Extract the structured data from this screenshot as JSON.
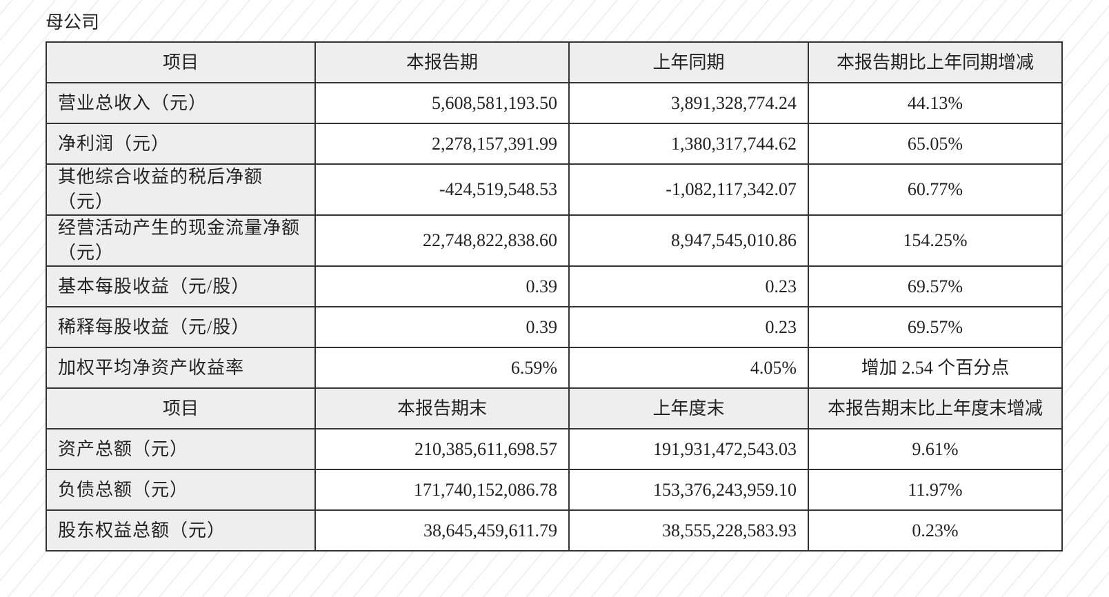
{
  "caption": "母公司",
  "table": {
    "sections": [
      {
        "header": [
          "项目",
          "本报告期",
          "上年同期",
          "本报告期比上年同期增减"
        ],
        "rows": [
          [
            "营业总收入（元）",
            "5,608,581,193.50",
            "3,891,328,774.24",
            "44.13%"
          ],
          [
            "净利润（元）",
            "2,278,157,391.99",
            "1,380,317,744.62",
            "65.05%"
          ],
          [
            "其他综合收益的税后净额（元）",
            "-424,519,548.53",
            "-1,082,117,342.07",
            "60.77%"
          ],
          [
            "经营活动产生的现金流量净额（元）",
            "22,748,822,838.60",
            "8,947,545,010.86",
            "154.25%"
          ],
          [
            "基本每股收益（元/股）",
            "0.39",
            "0.23",
            "69.57%"
          ],
          [
            "稀释每股收益（元/股）",
            "0.39",
            "0.23",
            "69.57%"
          ],
          [
            "加权平均净资产收益率",
            "6.59%",
            "4.05%",
            "增加 2.54 个百分点"
          ]
        ]
      },
      {
        "header": [
          "项目",
          "本报告期末",
          "上年度末",
          "本报告期末比上年度末增减"
        ],
        "rows": [
          [
            "资产总额（元）",
            "210,385,611,698.57",
            "191,931,472,543.03",
            "9.61%"
          ],
          [
            "负债总额（元）",
            "171,740,152,086.78",
            "153,376,243,959.10",
            "11.97%"
          ],
          [
            "股东权益总额（元）",
            "38,645,459,611.79",
            "38,555,228,583.93",
            "0.23%"
          ]
        ]
      }
    ]
  }
}
